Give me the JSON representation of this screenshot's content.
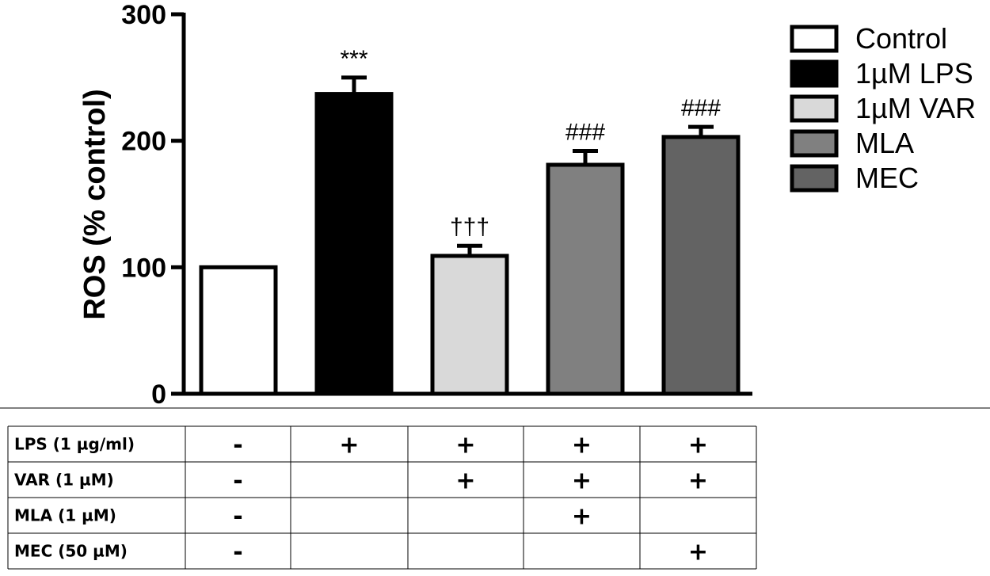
{
  "chart_data": {
    "type": "bar",
    "title": "",
    "xlabel": "",
    "ylabel": "ROS (% control)",
    "ylim": [
      0,
      300
    ],
    "yticks": [
      0,
      100,
      200,
      300
    ],
    "grid": false,
    "legend_position": "right",
    "categories": [
      "Control",
      "1µM LPS",
      "1µM VAR",
      "MLA",
      "MEC"
    ],
    "values": [
      100,
      237,
      109,
      181,
      203
    ],
    "errors": [
      0,
      13,
      8,
      11,
      8
    ],
    "annotations": [
      "",
      "***",
      "†††",
      "###",
      "###"
    ],
    "colors": [
      "#ffffff",
      "#000000",
      "#d9d9d9",
      "#808080",
      "#636363"
    ],
    "legend": [
      "Control",
      "1µM LPS",
      "1µM VAR",
      "MLA",
      "MEC"
    ]
  },
  "treatment_table": {
    "rows": [
      {
        "label": "LPS (1 µg/ml)",
        "cells": [
          "-",
          "+",
          "+",
          "+",
          "+"
        ]
      },
      {
        "label": "VAR (1 µM)",
        "cells": [
          "-",
          "",
          "+",
          "+",
          "+"
        ]
      },
      {
        "label": "MLA (1 µM)",
        "cells": [
          "-",
          "",
          "",
          "+",
          ""
        ]
      },
      {
        "label": "MEC (50 µM)",
        "cells": [
          "-",
          "",
          "",
          "",
          "+"
        ]
      }
    ]
  }
}
